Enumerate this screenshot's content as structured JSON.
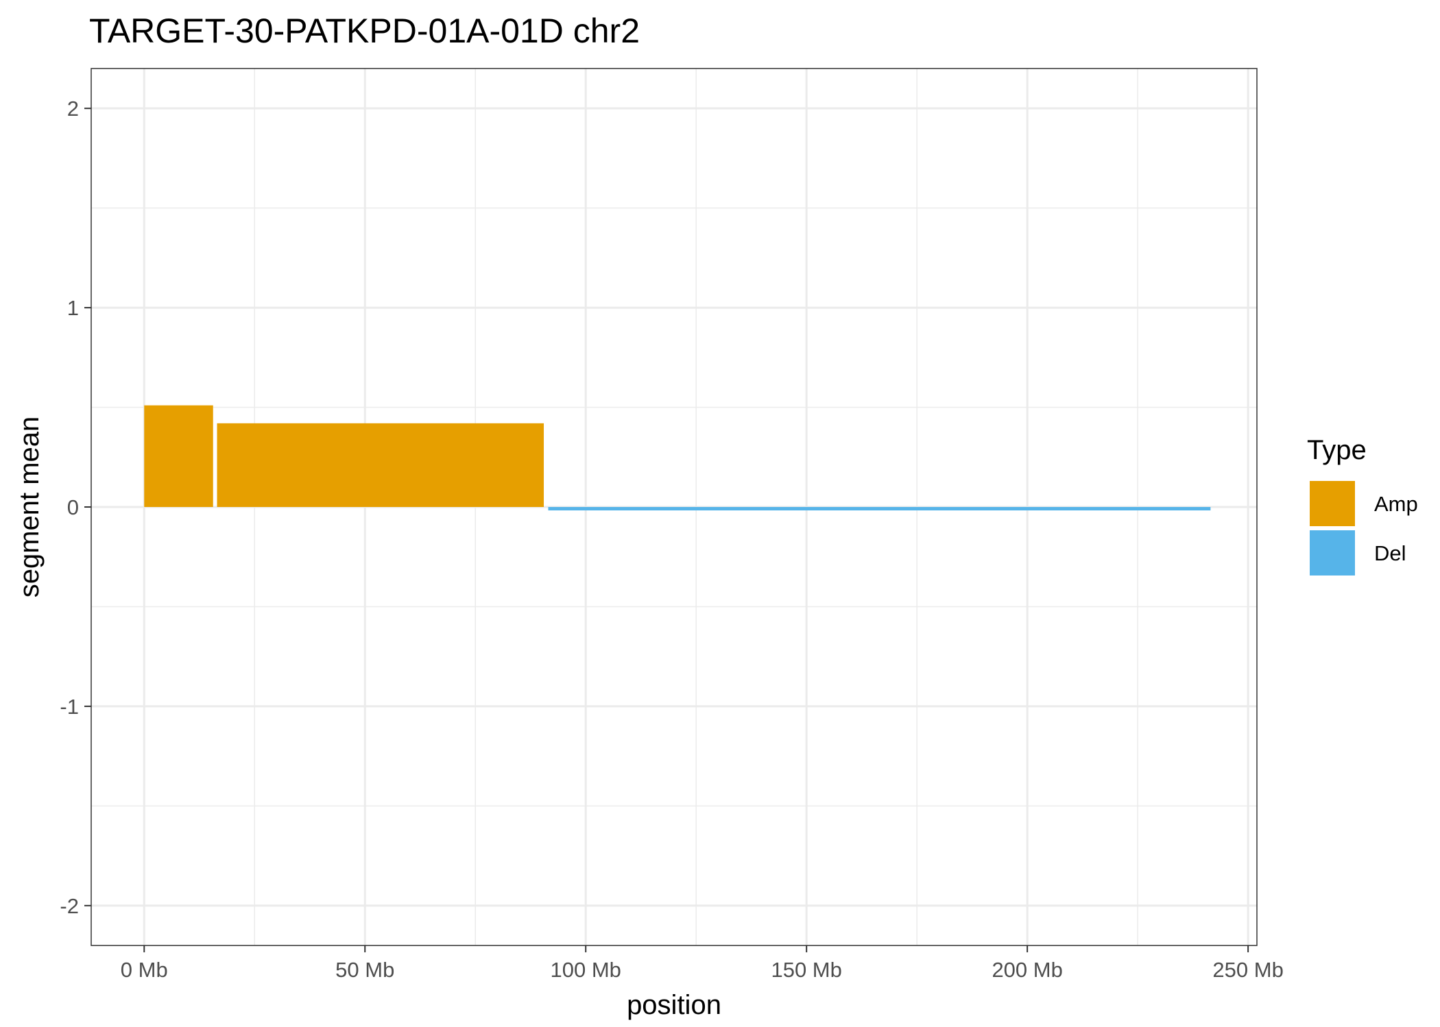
{
  "chart_data": {
    "type": "bar",
    "title": "TARGET-30-PATKPD-01A-01D chr2",
    "xlabel": "position",
    "ylabel": "segment mean",
    "xlim": [
      -12,
      252
    ],
    "ylim": [
      -2.2,
      2.2
    ],
    "x_ticks": [
      0,
      50,
      100,
      150,
      200,
      250
    ],
    "x_tick_labels": [
      "0 Mb",
      "50 Mb",
      "100 Mb",
      "150 Mb",
      "200 Mb",
      "250 Mb"
    ],
    "y_ticks": [
      -2,
      -1,
      0,
      1,
      2
    ],
    "y_tick_labels": [
      "-2",
      "-1",
      "0",
      "1",
      "2"
    ],
    "grid": true,
    "legend": {
      "title": "Type",
      "position": "right",
      "entries": [
        {
          "label": "Amp",
          "color": "#E69F00"
        },
        {
          "label": "Del",
          "color": "#56B4E9"
        }
      ]
    },
    "segments": [
      {
        "start": 0,
        "end": 15.6,
        "value": 0.51,
        "type": "Amp"
      },
      {
        "start": 16.5,
        "end": 90.5,
        "value": 0.42,
        "type": "Amp"
      },
      {
        "start": 91.5,
        "end": 241.5,
        "value": -0.01,
        "type": "Del"
      }
    ]
  }
}
